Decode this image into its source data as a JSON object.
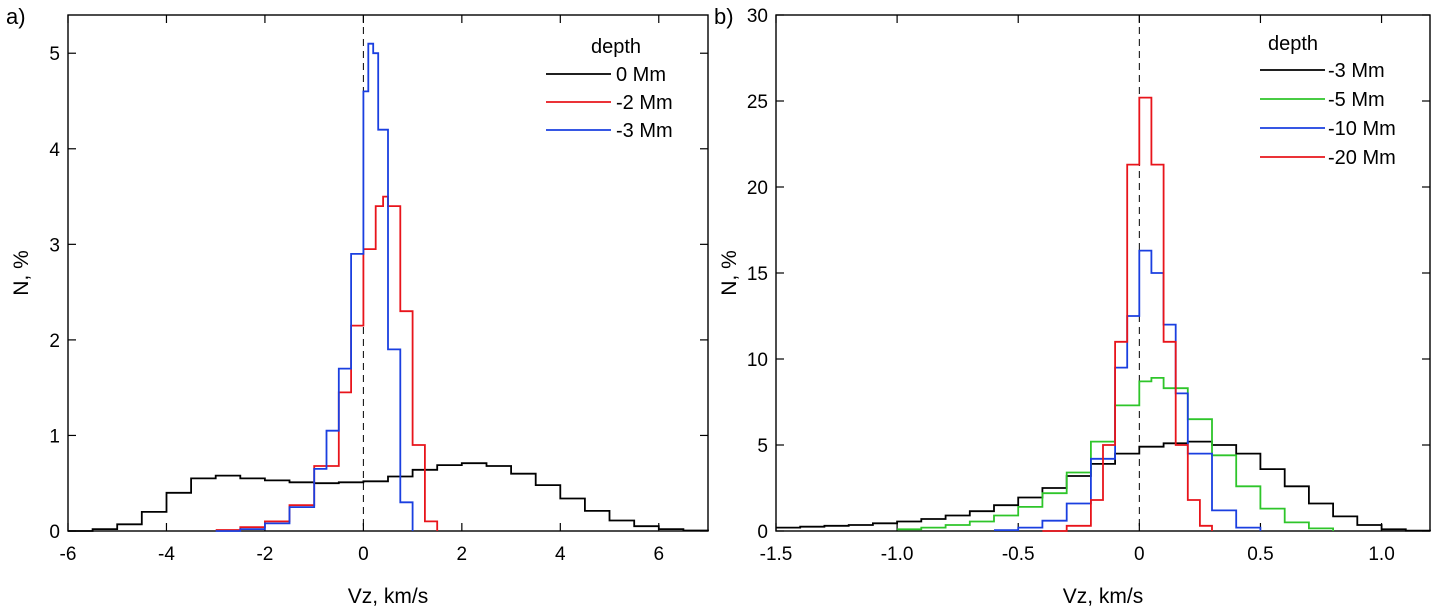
{
  "chart_data": [
    {
      "type": "line",
      "step": true,
      "panel": "a)",
      "xlabel": "Vz, km/s",
      "ylabel": "N, %",
      "xlim": [
        -6,
        7
      ],
      "ylim": [
        0,
        5.4
      ],
      "xticks": [
        -6,
        -4,
        -2,
        0,
        2,
        4,
        6
      ],
      "xtick_labels": [
        "-6",
        "-4",
        "-2",
        "0",
        "2",
        "4",
        "6"
      ],
      "yticks": [
        0,
        1,
        2,
        3,
        4,
        5
      ],
      "ytick_labels": [
        "0",
        "1",
        "2",
        "3",
        "4",
        "5"
      ],
      "reference_line_x": 0,
      "legend": {
        "title": "depth",
        "position": "top-right"
      },
      "series": [
        {
          "name": "0 Mm",
          "color": "#000000",
          "x": [
            -6.0,
            -5.5,
            -5.0,
            -4.5,
            -4.0,
            -3.5,
            -3.0,
            -2.5,
            -2.0,
            -1.5,
            -1.0,
            -0.5,
            0.0,
            0.5,
            1.0,
            1.5,
            2.0,
            2.5,
            3.0,
            3.5,
            4.0,
            4.5,
            5.0,
            5.5,
            6.0,
            6.5,
            7.0
          ],
          "values": [
            0.0,
            0.02,
            0.07,
            0.2,
            0.4,
            0.55,
            0.58,
            0.55,
            0.53,
            0.51,
            0.5,
            0.51,
            0.52,
            0.57,
            0.64,
            0.69,
            0.71,
            0.68,
            0.6,
            0.48,
            0.34,
            0.21,
            0.11,
            0.05,
            0.02,
            0.005,
            0.0
          ]
        },
        {
          "name": "-2 Mm",
          "color": "#e8141b",
          "x": [
            -3.0,
            -2.5,
            -2.0,
            -1.5,
            -1.0,
            -0.5,
            -0.25,
            0.0,
            0.25,
            0.4,
            0.5,
            0.75,
            1.0,
            1.25,
            1.5
          ],
          "values": [
            0.01,
            0.04,
            0.1,
            0.27,
            0.68,
            1.45,
            2.15,
            2.95,
            3.4,
            3.5,
            3.4,
            2.3,
            0.9,
            0.1,
            0.0
          ]
        },
        {
          "name": "-3 Mm",
          "color": "#1a3fe0",
          "x": [
            -3.0,
            -2.5,
            -2.0,
            -1.5,
            -1.0,
            -0.75,
            -0.5,
            -0.25,
            0.0,
            0.1,
            0.2,
            0.3,
            0.5,
            0.75,
            1.0
          ],
          "values": [
            0.0,
            0.02,
            0.08,
            0.25,
            0.65,
            1.05,
            1.7,
            2.9,
            4.6,
            5.1,
            5.0,
            4.2,
            1.9,
            0.3,
            0.0
          ]
        }
      ]
    },
    {
      "type": "line",
      "step": true,
      "panel": "b)",
      "xlabel": "Vz, km/s",
      "ylabel": "N, %",
      "xlim": [
        -1.5,
        1.2
      ],
      "ylim": [
        0,
        30
      ],
      "xticks": [
        -1.5,
        -1.0,
        -0.5,
        0,
        0.5,
        1.0
      ],
      "xtick_labels": [
        "-1.5",
        "-1.0",
        "-0.5",
        "0",
        "0.5",
        "1.0"
      ],
      "yticks": [
        0,
        5,
        10,
        15,
        20,
        25,
        30
      ],
      "ytick_labels": [
        "0",
        "5",
        "10",
        "15",
        "20",
        "25",
        "30"
      ],
      "reference_line_x": 0,
      "legend": {
        "title": "depth",
        "position": "top-right"
      },
      "series": [
        {
          "name": "-3 Mm",
          "color": "#000000",
          "x": [
            -1.5,
            -1.4,
            -1.3,
            -1.2,
            -1.1,
            -1.0,
            -0.9,
            -0.8,
            -0.7,
            -0.6,
            -0.5,
            -0.4,
            -0.3,
            -0.2,
            -0.1,
            0.0,
            0.1,
            0.2,
            0.3,
            0.4,
            0.5,
            0.6,
            0.7,
            0.8,
            0.9,
            1.0,
            1.1,
            1.2
          ],
          "values": [
            0.2,
            0.25,
            0.3,
            0.35,
            0.45,
            0.55,
            0.7,
            0.9,
            1.15,
            1.5,
            1.95,
            2.5,
            3.2,
            3.9,
            4.5,
            4.9,
            5.1,
            5.2,
            5.0,
            4.5,
            3.6,
            2.6,
            1.6,
            0.85,
            0.35,
            0.1,
            0.02,
            0.0
          ]
        },
        {
          "name": "-5 Mm",
          "color": "#2ec52a",
          "x": [
            -1.0,
            -0.9,
            -0.8,
            -0.7,
            -0.6,
            -0.5,
            -0.4,
            -0.3,
            -0.2,
            -0.1,
            0.0,
            0.05,
            0.1,
            0.2,
            0.3,
            0.4,
            0.5,
            0.6,
            0.7,
            0.8
          ],
          "values": [
            0.1,
            0.2,
            0.35,
            0.55,
            0.9,
            1.4,
            2.2,
            3.4,
            5.2,
            7.3,
            8.7,
            8.9,
            8.3,
            6.5,
            4.4,
            2.6,
            1.3,
            0.5,
            0.15,
            0.0
          ]
        },
        {
          "name": "-10 Mm",
          "color": "#1a3fe0",
          "x": [
            -0.6,
            -0.5,
            -0.4,
            -0.3,
            -0.2,
            -0.1,
            -0.05,
            0.0,
            0.05,
            0.1,
            0.15,
            0.2,
            0.3,
            0.4,
            0.5
          ],
          "values": [
            0.05,
            0.2,
            0.6,
            1.6,
            4.2,
            9.5,
            12.5,
            16.3,
            15.0,
            12.0,
            8.0,
            4.5,
            1.2,
            0.2,
            0.0
          ]
        },
        {
          "name": "-20 Mm",
          "color": "#e8141b",
          "x": [
            -0.4,
            -0.3,
            -0.2,
            -0.15,
            -0.1,
            -0.05,
            0.0,
            0.05,
            0.1,
            0.15,
            0.2,
            0.25,
            0.3
          ],
          "values": [
            0.0,
            0.3,
            1.8,
            5.0,
            11.0,
            21.3,
            25.2,
            21.3,
            11.0,
            5.0,
            1.8,
            0.3,
            0.0
          ]
        }
      ]
    }
  ]
}
